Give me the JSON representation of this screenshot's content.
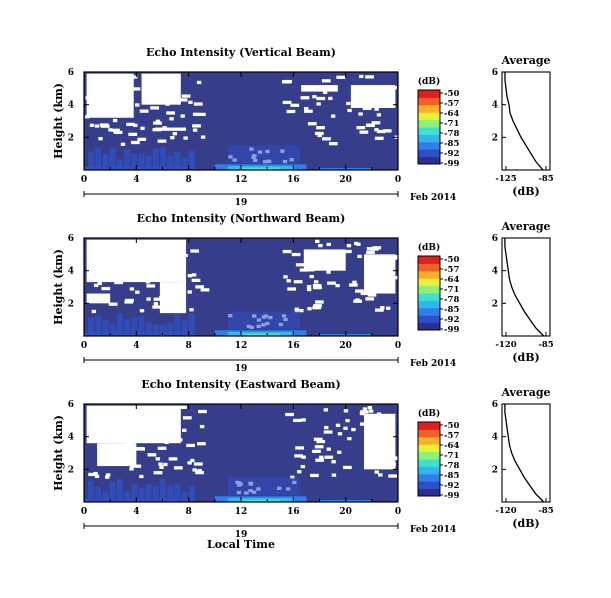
{
  "date_label": "Feb 2014",
  "xlabel_bottom": "Local Time",
  "colorbar": {
    "unit": "(dB)",
    "ticks": [
      "-50",
      "-57",
      "-64",
      "-71",
      "-78",
      "-85",
      "-92",
      "-99"
    ],
    "colors": [
      "#2b2f8f",
      "#2f4fc4",
      "#2f7fe8",
      "#33b5ef",
      "#3fe0d0",
      "#8ff07a",
      "#e8f03a",
      "#f7b02a",
      "#f2602a",
      "#e02020"
    ]
  },
  "colors": {
    "background": "#363d8a",
    "missing": "#ffffff",
    "axis": "#000000"
  },
  "chart_data": [
    {
      "type": "heatmap",
      "title": "Echo Intensity (Vertical Beam)",
      "ylabel": "Height (km)",
      "xlabel": "19",
      "x_ticks": [
        "0",
        "4",
        "8",
        "12",
        "16",
        "20",
        "0"
      ],
      "y_ticks": [
        "2",
        "4",
        "6"
      ],
      "xlim": [
        0,
        24
      ],
      "ylim": [
        0,
        6
      ],
      "zlim": [
        -99,
        -50
      ],
      "grid": false,
      "profile": {
        "title": "Average",
        "xlabel": "(dB)",
        "x_ticks": [
          "-125",
          "-85"
        ],
        "y_ticks": [
          "2",
          "4",
          "6"
        ],
        "height_km": [
          0.0,
          0.5,
          1.0,
          1.5,
          2.0,
          2.5,
          3.0,
          3.5,
          4.0,
          4.5,
          5.0,
          5.5,
          6.0
        ],
        "power_db": [
          -88,
          -95,
          -100,
          -105,
          -110,
          -114,
          -118,
          -121,
          -122,
          -124,
          -125,
          -126,
          -126
        ]
      }
    },
    {
      "type": "heatmap",
      "title": "Echo Intensity (Northward Beam)",
      "ylabel": "Height (km)",
      "xlabel": "19",
      "x_ticks": [
        "0",
        "4",
        "8",
        "12",
        "16",
        "20",
        "0"
      ],
      "y_ticks": [
        "2",
        "4",
        "6"
      ],
      "xlim": [
        0,
        24
      ],
      "ylim": [
        0,
        6
      ],
      "zlim": [
        -99,
        -50
      ],
      "grid": false,
      "profile": {
        "title": "Average",
        "xlabel": "(dB)",
        "x_ticks": [
          "-120",
          "-85"
        ],
        "y_ticks": [
          "2",
          "4",
          "6"
        ],
        "height_km": [
          0.0,
          0.5,
          1.0,
          1.5,
          2.0,
          2.5,
          3.0,
          3.5,
          4.0,
          4.5,
          5.0,
          5.5,
          6.0
        ],
        "power_db": [
          -87,
          -94,
          -99,
          -104,
          -108,
          -112,
          -115,
          -117,
          -118,
          -119,
          -120,
          -121,
          -121
        ]
      }
    },
    {
      "type": "heatmap",
      "title": "Echo Intensity (Eastward Beam)",
      "ylabel": "Height (km)",
      "xlabel": "19",
      "x_ticks": [
        "0",
        "4",
        "8",
        "12",
        "16",
        "20",
        "0"
      ],
      "y_ticks": [
        "2",
        "4",
        "6"
      ],
      "xlim": [
        0,
        24
      ],
      "ylim": [
        0,
        6
      ],
      "zlim": [
        -99,
        -50
      ],
      "grid": false,
      "profile": {
        "title": "Average",
        "xlabel": "(dB)",
        "x_ticks": [
          "-120",
          "-85"
        ],
        "y_ticks": [
          "2",
          "4",
          "6"
        ],
        "height_km": [
          0.0,
          0.5,
          1.0,
          1.5,
          2.0,
          2.5,
          3.0,
          3.5,
          4.0,
          4.5,
          5.0,
          5.5,
          6.0
        ],
        "power_db": [
          -87,
          -94,
          -99,
          -104,
          -108,
          -112,
          -115,
          -117,
          -118,
          -119,
          -120,
          -121,
          -121
        ]
      }
    }
  ]
}
